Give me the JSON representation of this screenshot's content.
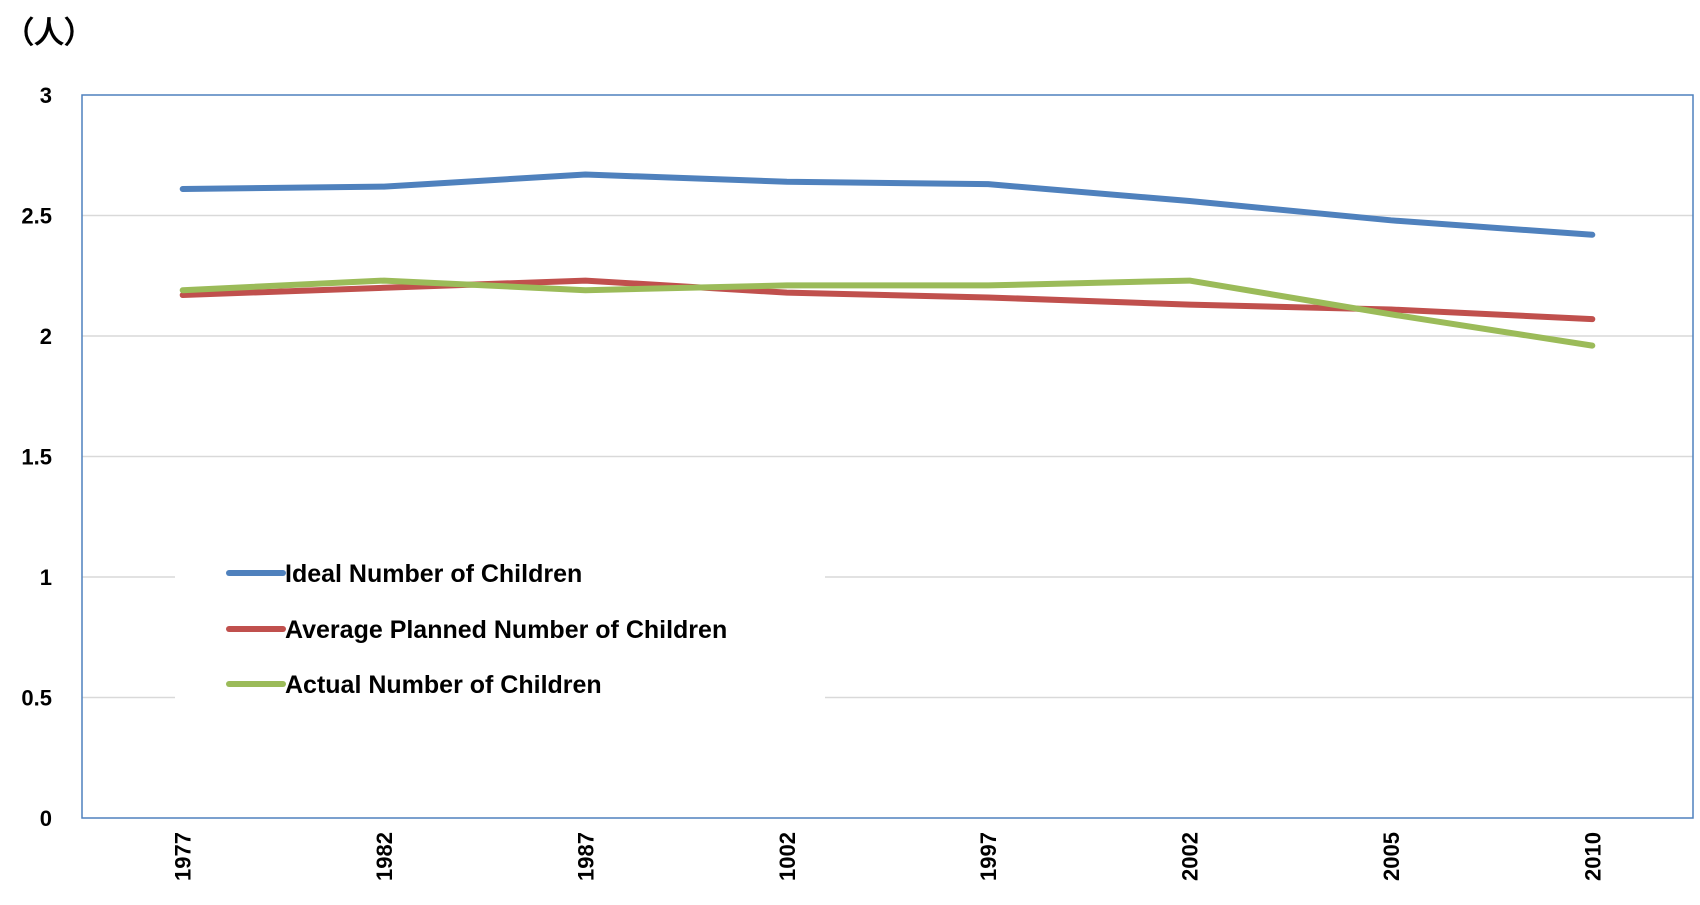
{
  "unit_label": "（人）",
  "chart_data": {
    "type": "line",
    "title": "",
    "xlabel": "",
    "ylabel": "",
    "categories": [
      "1977",
      "1982",
      "1987",
      "1002",
      "1997",
      "2002",
      "2005",
      "2010"
    ],
    "ylim": [
      0,
      3
    ],
    "yticks": [
      "0",
      "0.5",
      "1",
      "1.5",
      "2",
      "2.5",
      "3"
    ],
    "grid": true,
    "legend_position": "lower-left",
    "series": [
      {
        "name": "Ideal Number of Children",
        "color": "#4F81BD",
        "values": [
          2.61,
          2.62,
          2.67,
          2.64,
          2.63,
          2.56,
          2.48,
          2.42
        ]
      },
      {
        "name": "Average Planned Number of Children",
        "color": "#C0504D",
        "values": [
          2.17,
          2.2,
          2.23,
          2.18,
          2.16,
          2.13,
          2.11,
          2.07
        ]
      },
      {
        "name": "Actual Number of Children",
        "color": "#9BBB59",
        "values": [
          2.19,
          2.23,
          2.19,
          2.21,
          2.21,
          2.23,
          2.09,
          1.96
        ]
      }
    ]
  }
}
